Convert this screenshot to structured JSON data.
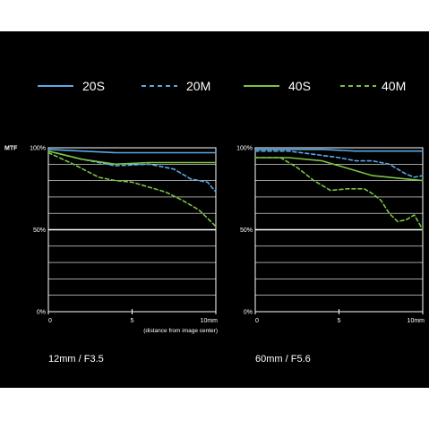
{
  "legend": [
    {
      "label": "20S",
      "color": "#5aa9e6",
      "dash": "solid"
    },
    {
      "label": "20M",
      "color": "#5aa9e6",
      "dash": "dashed"
    },
    {
      "label": "40S",
      "color": "#7cc242",
      "dash": "solid"
    },
    {
      "label": "40M",
      "color": "#7cc242",
      "dash": "dashed"
    }
  ],
  "colors": {
    "background": "#000000",
    "plot_bg": "#000000",
    "grid": "#ffffff",
    "blue": "#5aa9e6",
    "green": "#7cc242"
  },
  "chart_data": [
    {
      "type": "line",
      "ylabel": "MTF",
      "subtitle": "12mm / F3.5",
      "xnote": "(distance from image center)",
      "xlim": [
        0,
        10
      ],
      "ylim": [
        0,
        100
      ],
      "xticks": [
        "0",
        "5",
        "10mm"
      ],
      "yticks": [
        "0%",
        "50%",
        "100%"
      ],
      "grid": true,
      "series": [
        {
          "name": "20S",
          "x": [
            0,
            2,
            4,
            6,
            8,
            10
          ],
          "values": [
            99,
            98,
            97,
            97,
            97,
            97
          ]
        },
        {
          "name": "20M",
          "x": [
            0,
            2,
            4,
            6,
            7.5,
            8.5,
            9.5,
            10
          ],
          "values": [
            98,
            93,
            89,
            90,
            87,
            81,
            79,
            73
          ]
        },
        {
          "name": "40S",
          "x": [
            0,
            2,
            4,
            6,
            8,
            10
          ],
          "values": [
            98,
            93,
            90,
            91,
            91,
            91
          ]
        },
        {
          "name": "40M",
          "x": [
            0,
            1.5,
            3,
            4,
            5,
            6,
            7,
            8,
            9,
            9.5,
            10
          ],
          "values": [
            97,
            90,
            82,
            80,
            79,
            76,
            73,
            68,
            62,
            57,
            52
          ]
        }
      ]
    },
    {
      "type": "line",
      "ylabel": "",
      "subtitle": "60mm / F5.6",
      "xnote": "",
      "xlim": [
        0,
        10
      ],
      "ylim": [
        0,
        100
      ],
      "xticks": [
        "0",
        "5",
        "10mm"
      ],
      "yticks": [
        "0%",
        "50%",
        "100%"
      ],
      "grid": true,
      "series": [
        {
          "name": "20S",
          "x": [
            0,
            2,
            4,
            6,
            8,
            10
          ],
          "values": [
            99,
            99,
            99,
            98,
            98,
            98
          ]
        },
        {
          "name": "20M",
          "x": [
            0,
            2,
            3.5,
            5,
            6,
            7,
            8,
            9,
            9.5,
            10
          ],
          "values": [
            98,
            98,
            96,
            94,
            92,
            92,
            90,
            84,
            82,
            83
          ]
        },
        {
          "name": "40S",
          "x": [
            0,
            2,
            4,
            5,
            6,
            7,
            8,
            9,
            10
          ],
          "values": [
            94,
            94,
            92,
            89,
            86,
            83,
            82,
            81,
            80
          ]
        },
        {
          "name": "40M",
          "x": [
            0,
            1.5,
            2.5,
            3.5,
            4.5,
            5.5,
            6.5,
            7,
            7.5,
            8,
            8.5,
            9,
            9.5,
            10
          ],
          "values": [
            94,
            94,
            88,
            80,
            74,
            75,
            75,
            72,
            68,
            60,
            55,
            56,
            59,
            50
          ]
        }
      ]
    }
  ]
}
